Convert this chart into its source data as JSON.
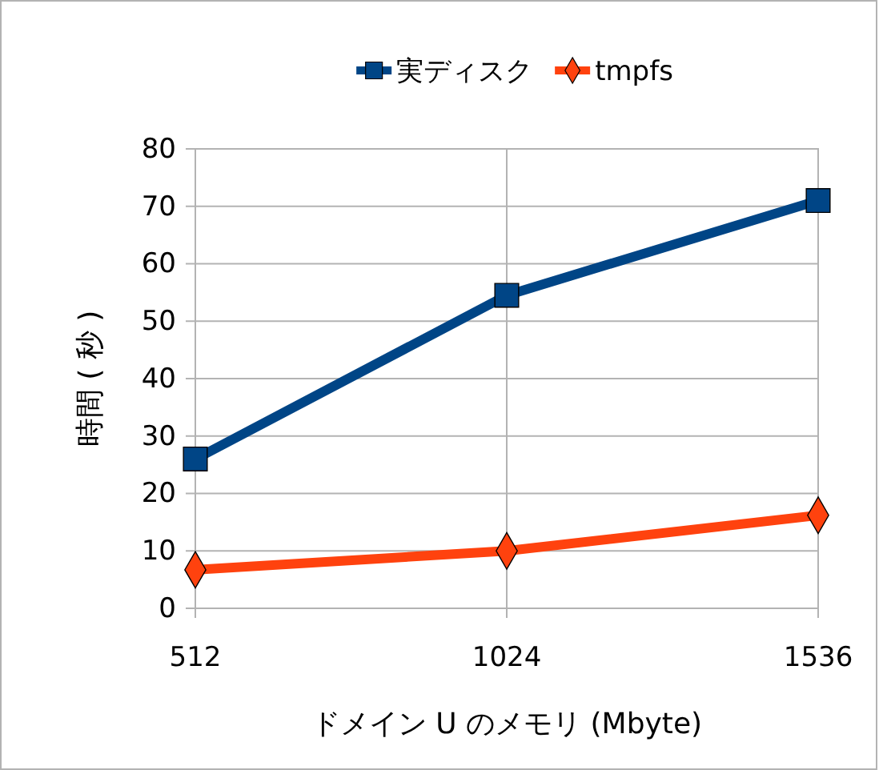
{
  "chart_data": {
    "type": "line",
    "xlabel": "ドメイン U のメモリ (Mbyte)",
    "ylabel": "時間 ( 秒 )",
    "x": [
      512,
      1024,
      1536
    ],
    "series": [
      {
        "name": "実ディスク",
        "color": "#004586",
        "values": [
          26,
          54.5,
          71
        ],
        "marker": "square"
      },
      {
        "name": "tmpfs",
        "color": "#ff420e",
        "values": [
          6.7,
          10,
          16.2
        ],
        "marker": "diamond"
      }
    ],
    "xlim": [
      512,
      1536
    ],
    "xticks": [
      512,
      1024,
      1536
    ],
    "ylim": [
      0,
      80
    ],
    "yticks": [
      0,
      10,
      20,
      30,
      40,
      50,
      60,
      70,
      80
    ],
    "grid": true,
    "legend": "top"
  }
}
